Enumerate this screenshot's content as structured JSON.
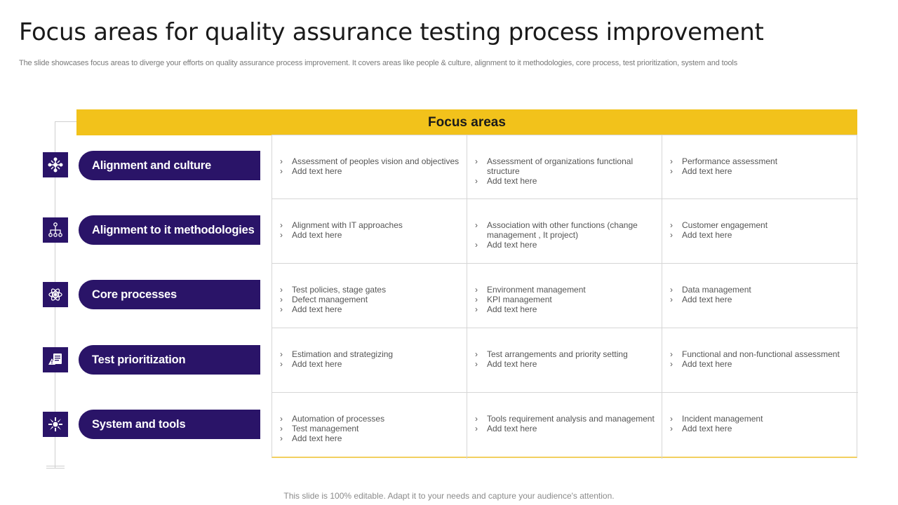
{
  "title": "Focus areas for quality assurance testing process improvement",
  "subtitle": "The slide showcases focus areas to diverge your efforts on  quality assurance process improvement. It covers areas like people & culture, alignment to it methodologies, core process, test prioritization, system and tools",
  "header": "Focus areas",
  "colors": {
    "primary": "#2a1468",
    "accent": "#f2c21b"
  },
  "rows": [
    {
      "label": "Alignment and culture",
      "icon": "network-people-icon",
      "cells": [
        [
          "Assessment of peoples vision  and objectives",
          "Add text here"
        ],
        [
          "Assessment of organizations functional structure",
          "Add text here"
        ],
        [
          "Performance assessment",
          "Add text here"
        ]
      ]
    },
    {
      "label": "Alignment to it methodologies",
      "icon": "hierarchy-icon",
      "cells": [
        [
          "Alignment with IT approaches",
          "Add text here"
        ],
        [
          "Association with  other functions (change management , It project)",
          "Add text here"
        ],
        [
          "Customer engagement",
          "Add text here"
        ]
      ]
    },
    {
      "label": "Core processes",
      "icon": "atom-gear-icon",
      "cells": [
        [
          "Test policies, stage gates",
          "Defect management",
          "Add text here"
        ],
        [
          "Environment management",
          "KPI management",
          "Add text here"
        ],
        [
          "Data management",
          "Add text here"
        ]
      ]
    },
    {
      "label": "Test prioritization",
      "icon": "document-warning-icon",
      "cells": [
        [
          "Estimation and strategizing",
          "Add text here"
        ],
        [
          "Test arrangements and priority setting",
          "Add text here"
        ],
        [
          "Functional and non-functional assessment",
          "Add text here"
        ]
      ]
    },
    {
      "label": "System and tools",
      "icon": "tools-icon",
      "cells": [
        [
          "Automation of processes",
          "Test management",
          "Add text here"
        ],
        [
          "Tools requirement analysis and management",
          "Add text here"
        ],
        [
          "Incident management",
          "Add text here"
        ]
      ]
    }
  ],
  "footer": "This slide is 100% editable. Adapt it to your needs and capture your audience's attention."
}
